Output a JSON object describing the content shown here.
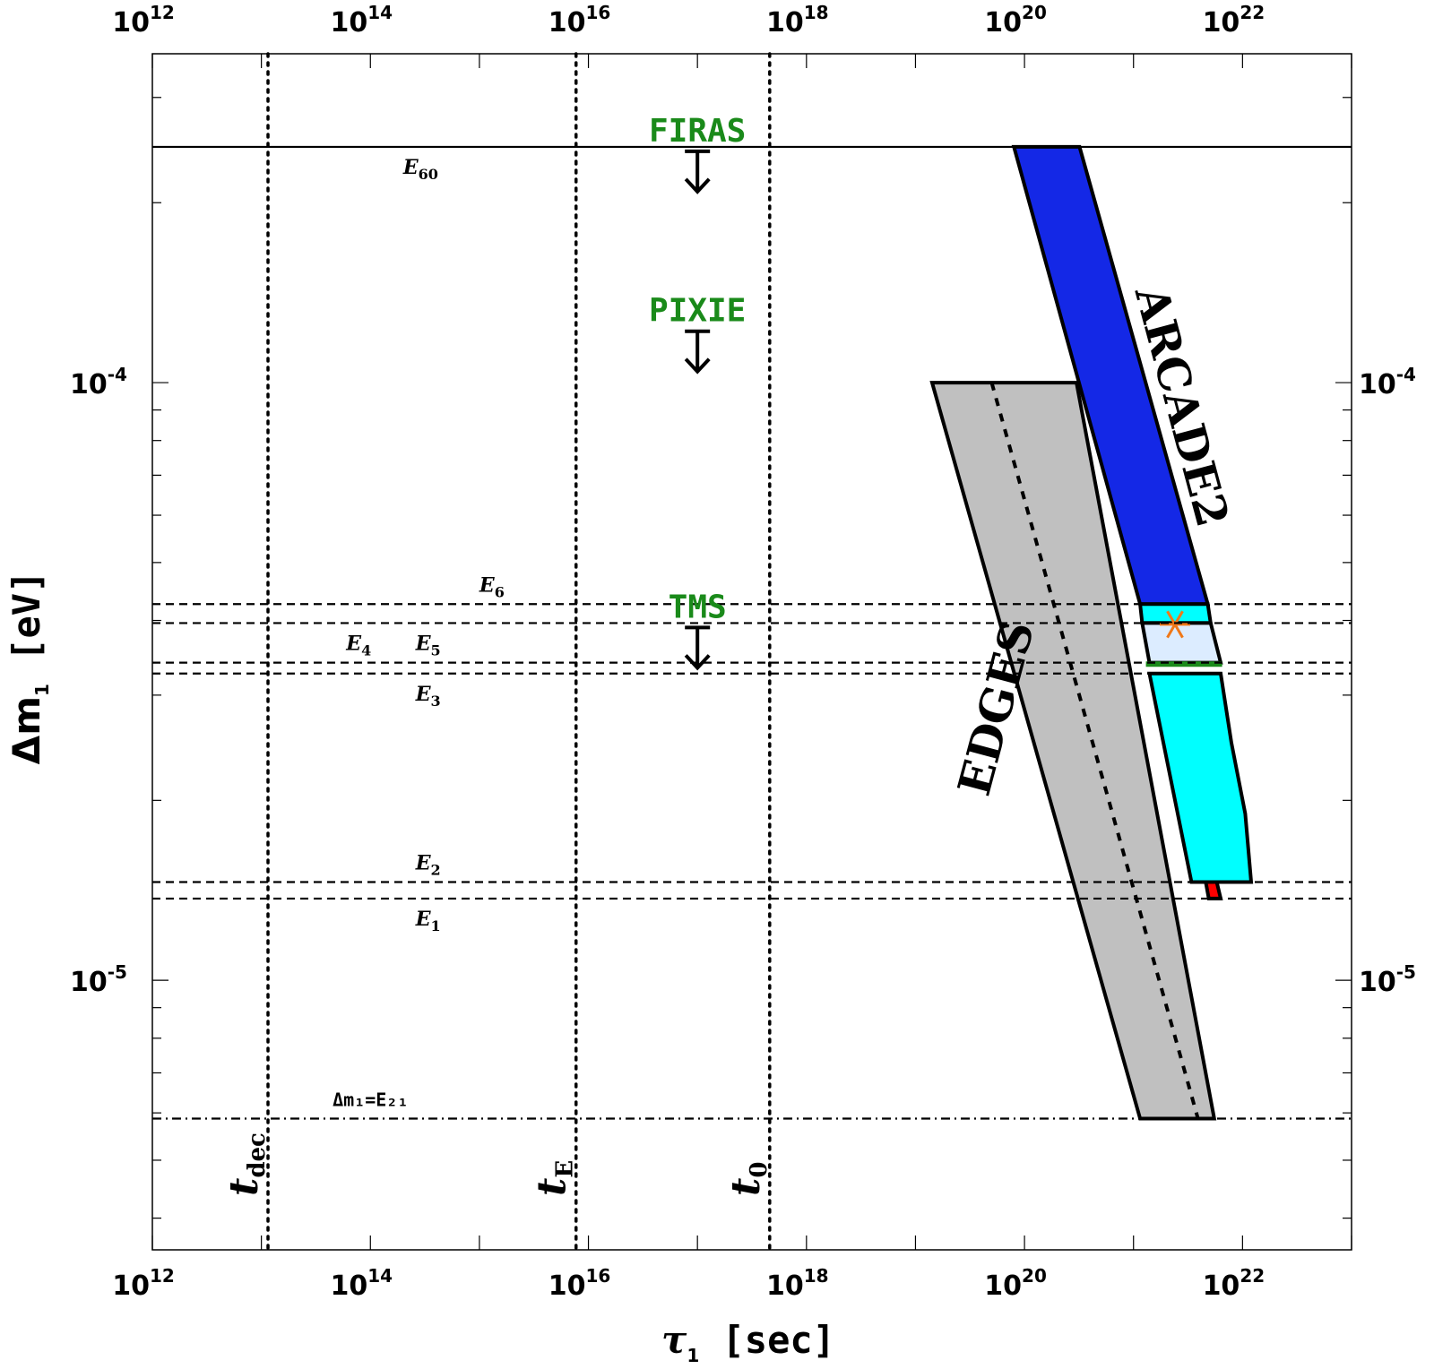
{
  "chart_data": {
    "type": "area",
    "title": "",
    "xlabel": "τ",
    "xlabel_sub": "1",
    "xlabel_unit": "[sec]",
    "ylabel": "Δm",
    "ylabel_sub": "1",
    "ylabel_unit": "[eV]",
    "x_scale": "log",
    "y_scale": "log",
    "xlim": [
      1000000000000.0,
      1e+23
    ],
    "ylim": [
      3.54e-06,
      0.000355
    ],
    "x_ticks": [
      {
        "base": "10",
        "exp": "12",
        "value": 1000000000000.0
      },
      {
        "base": "10",
        "exp": "14",
        "value": 100000000000000.0
      },
      {
        "base": "10",
        "exp": "16",
        "value": 1e+16
      },
      {
        "base": "10",
        "exp": "18",
        "value": 1e+18
      },
      {
        "base": "10",
        "exp": "20",
        "value": 1e+20
      },
      {
        "base": "10",
        "exp": "22",
        "value": 1e+22
      }
    ],
    "y_ticks": [
      {
        "base": "10",
        "exp": "-4",
        "value": 0.0001
      },
      {
        "base": "10",
        "exp": "-5",
        "value": 1e-05
      }
    ],
    "grid": false,
    "legend": "none",
    "hlines": [
      {
        "label": "E",
        "sub": "60",
        "y": 0.000248,
        "style": "solid",
        "label_x": 200000000000000.0,
        "label_pos": "below"
      },
      {
        "label": "E",
        "sub": "6",
        "y": 4.26e-05,
        "style": "dashed",
        "label_x": 1000000000000000.0,
        "label_pos": "above"
      },
      {
        "label": "E",
        "sub": "5",
        "y": 3.96e-05,
        "style": "dashed",
        "label_x": 260000000000000.0,
        "label_pos": "below"
      },
      {
        "label": "E",
        "sub": "4",
        "y": 3.4e-05,
        "style": "dashed",
        "label_x": 60000000000000.0,
        "label_pos": "above"
      },
      {
        "label": "E",
        "sub": "3",
        "y": 3.26e-05,
        "style": "dashed",
        "label_x": 260000000000000.0,
        "label_pos": "below"
      },
      {
        "label": "E",
        "sub": "2",
        "y": 1.46e-05,
        "style": "dashed",
        "label_x": 260000000000000.0,
        "label_pos": "above"
      },
      {
        "label": "E",
        "sub": "1",
        "y": 1.37e-05,
        "style": "dashed",
        "label_x": 260000000000000.0,
        "label_pos": "below"
      },
      {
        "label": "Δm₁=E₂₁",
        "y": 5.87e-06,
        "style": "dashdot",
        "label_x": 45000000000000.0,
        "label_pos": "above"
      }
    ],
    "vlines": [
      {
        "label": "t",
        "sub": "dec",
        "x": 11500000000000.0
      },
      {
        "label": "t",
        "sub": "E",
        "x": 7700000000000000.0
      },
      {
        "label": "t",
        "sub": "0",
        "x": 4.6e+17
      }
    ],
    "limits": [
      {
        "name": "FIRAS",
        "x": 1e+17,
        "y": 0.000248,
        "direction": "down"
      },
      {
        "name": "PIXIE",
        "x": 1e+17,
        "y": 0.000124,
        "direction": "down"
      },
      {
        "name": "TMS",
        "x": 1e+17,
        "y": 3.96e-05,
        "direction": "down"
      }
    ],
    "regions": [
      {
        "name": "EDGES",
        "color": "#c0c0c0",
        "label_angle": -75,
        "points": [
          [
            1.42e+19,
            0.0001
          ],
          [
            3e+20,
            0.0001
          ],
          [
            5.5e+21,
            5.87e-06
          ],
          [
            1.15e+21,
            5.87e-06
          ]
        ],
        "center_line": [
          [
            5e+19,
            0.0001
          ],
          [
            3.9e+21,
            5.87e-06
          ]
        ]
      },
      {
        "name": "ARCADE2",
        "color": "#1428e6",
        "label_angle": 75,
        "points": [
          [
            8e+19,
            0.000248
          ],
          [
            3.2e+20,
            0.000248
          ],
          [
            4.8e+21,
            4.26e-05
          ],
          [
            1.15e+21,
            4.26e-05
          ]
        ]
      },
      {
        "name": "",
        "color": "#00ffff",
        "points": [
          [
            1.15e+21,
            4.26e-05
          ],
          [
            4.8e+21,
            4.26e-05
          ],
          [
            5.1e+21,
            3.96e-05
          ],
          [
            1.2e+21,
            3.96e-05
          ]
        ]
      },
      {
        "name": "",
        "color": "#dcecff",
        "points": [
          [
            1.2e+21,
            3.96e-05
          ],
          [
            5.1e+21,
            3.96e-05
          ],
          [
            6.3e+21,
            3.4e-05
          ],
          [
            1.4e+21,
            3.4e-05
          ]
        ]
      },
      {
        "name": "",
        "color": "#00ffff",
        "points": [
          [
            1.4e+21,
            3.26e-05
          ],
          [
            6.3e+21,
            3.26e-05
          ],
          [
            7.9e+21,
            2.5e-05
          ],
          [
            1.06e+22,
            1.9e-05
          ],
          [
            1.2e+22,
            1.46e-05
          ],
          [
            3.4e+21,
            1.46e-05
          ]
        ]
      },
      {
        "name": "",
        "color": "#ff0000",
        "points": [
          [
            4.6e+21,
            1.46e-05
          ],
          [
            5.8e+21,
            1.46e-05
          ],
          [
            6.3e+21,
            1.37e-05
          ],
          [
            4.9e+21,
            1.37e-05
          ]
        ]
      }
    ],
    "markers": [
      {
        "x": 2.4e+21,
        "y": 3.94e-05,
        "symbol": "star",
        "color": "#f07818"
      },
      {
        "x_from": 1.3e+21,
        "x_to": 6.5e+21,
        "y": 3.38e-05,
        "symbol": "bar",
        "color": "#1a8a1a"
      }
    ]
  }
}
